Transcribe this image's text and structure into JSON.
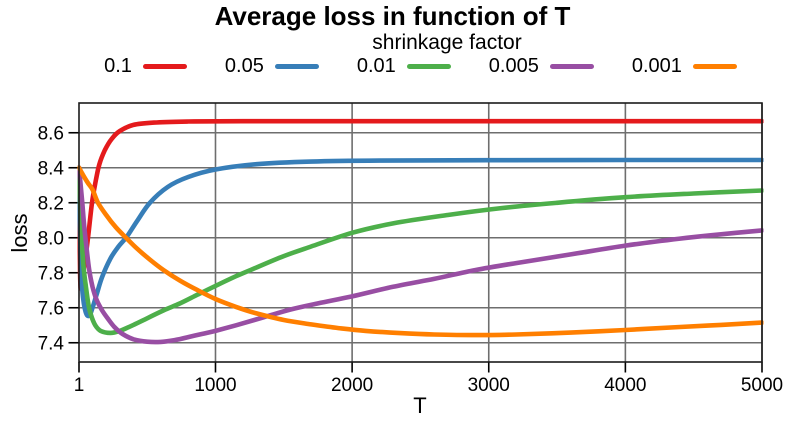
{
  "chart_data": {
    "type": "line",
    "title": "Average loss in function of T",
    "legend_title": "shrinkage factor",
    "legend_position": "top",
    "xlabel": "T",
    "ylabel": "loss",
    "grid": true,
    "colors": {
      "grid": "#6e6e6e",
      "box": "#1a1a1a",
      "axis": "#000000",
      "background": "#ffffff",
      "text": "#000000"
    },
    "x_axis": {
      "min": 1,
      "max": 5000,
      "ticks": [
        1,
        1000,
        2000,
        3000,
        4000,
        5000
      ],
      "tick_labels": [
        "1",
        "1000",
        "2000",
        "3000",
        "4000",
        "5000"
      ]
    },
    "y_axis": {
      "min": 7.29,
      "max": 8.77,
      "ticks": [
        7.4,
        7.6,
        7.8,
        8.0,
        8.2,
        8.4,
        8.6
      ],
      "tick_labels": [
        "7.4",
        "7.6",
        "7.8",
        "8.0",
        "8.2",
        "8.4",
        "8.6"
      ]
    },
    "series": [
      {
        "label": "0.1",
        "color": "#e41a1c",
        "points": [
          [
            1,
            8.4
          ],
          [
            4,
            8.1
          ],
          [
            8,
            7.84
          ],
          [
            12,
            7.72
          ],
          [
            18,
            7.725
          ],
          [
            28,
            7.775
          ],
          [
            45,
            7.87
          ],
          [
            67,
            8.0
          ],
          [
            96,
            8.2
          ],
          [
            125,
            8.33
          ],
          [
            150,
            8.42
          ],
          [
            190,
            8.5
          ],
          [
            240,
            8.565
          ],
          [
            300,
            8.61
          ],
          [
            400,
            8.645
          ],
          [
            550,
            8.658
          ],
          [
            800,
            8.664
          ],
          [
            1200,
            8.666
          ],
          [
            2000,
            8.666
          ],
          [
            3000,
            8.666
          ],
          [
            4000,
            8.666
          ],
          [
            5000,
            8.666
          ]
        ]
      },
      {
        "label": "0.05",
        "color": "#377eb8",
        "points": [
          [
            1,
            8.4
          ],
          [
            6,
            8.15
          ],
          [
            12,
            7.92
          ],
          [
            20,
            7.76
          ],
          [
            30,
            7.66
          ],
          [
            45,
            7.59
          ],
          [
            60,
            7.557
          ],
          [
            80,
            7.558
          ],
          [
            100,
            7.6
          ],
          [
            130,
            7.675
          ],
          [
            170,
            7.775
          ],
          [
            230,
            7.88
          ],
          [
            290,
            7.95
          ],
          [
            350,
            8.005
          ],
          [
            430,
            8.1
          ],
          [
            520,
            8.2
          ],
          [
            650,
            8.29
          ],
          [
            800,
            8.347
          ],
          [
            1000,
            8.39
          ],
          [
            1300,
            8.42
          ],
          [
            1700,
            8.435
          ],
          [
            2200,
            8.441
          ],
          [
            3000,
            8.443
          ],
          [
            4000,
            8.444
          ],
          [
            5000,
            8.444
          ]
        ]
      },
      {
        "label": "0.01",
        "color": "#4daf4a",
        "points": [
          [
            1,
            8.4
          ],
          [
            8,
            8.22
          ],
          [
            20,
            8.0
          ],
          [
            35,
            7.83
          ],
          [
            50,
            7.73
          ],
          [
            70,
            7.62
          ],
          [
            90,
            7.555
          ],
          [
            120,
            7.5
          ],
          [
            160,
            7.468
          ],
          [
            230,
            7.456
          ],
          [
            300,
            7.468
          ],
          [
            400,
            7.502
          ],
          [
            500,
            7.54
          ],
          [
            620,
            7.585
          ],
          [
            740,
            7.625
          ],
          [
            870,
            7.675
          ],
          [
            1000,
            7.725
          ],
          [
            1150,
            7.78
          ],
          [
            1300,
            7.83
          ],
          [
            1500,
            7.895
          ],
          [
            1700,
            7.95
          ],
          [
            2000,
            8.028
          ],
          [
            2300,
            8.082
          ],
          [
            2700,
            8.13
          ],
          [
            3100,
            8.17
          ],
          [
            3500,
            8.2
          ],
          [
            4000,
            8.232
          ],
          [
            4500,
            8.253
          ],
          [
            5000,
            8.27
          ]
        ]
      },
      {
        "label": "0.005",
        "color": "#984ea3",
        "points": [
          [
            1,
            8.4
          ],
          [
            12,
            8.31
          ],
          [
            25,
            8.2
          ],
          [
            40,
            8.06
          ],
          [
            55,
            7.95
          ],
          [
            75,
            7.82
          ],
          [
            100,
            7.72
          ],
          [
            130,
            7.645
          ],
          [
            170,
            7.585
          ],
          [
            210,
            7.54
          ],
          [
            260,
            7.49
          ],
          [
            320,
            7.45
          ],
          [
            400,
            7.42
          ],
          [
            500,
            7.406
          ],
          [
            600,
            7.405
          ],
          [
            700,
            7.415
          ],
          [
            800,
            7.432
          ],
          [
            900,
            7.45
          ],
          [
            1000,
            7.468
          ],
          [
            1150,
            7.5
          ],
          [
            1350,
            7.545
          ],
          [
            1550,
            7.59
          ],
          [
            1750,
            7.625
          ],
          [
            2000,
            7.665
          ],
          [
            2300,
            7.72
          ],
          [
            2600,
            7.765
          ],
          [
            2900,
            7.815
          ],
          [
            3200,
            7.855
          ],
          [
            3600,
            7.905
          ],
          [
            4000,
            7.955
          ],
          [
            4400,
            7.995
          ],
          [
            4700,
            8.02
          ],
          [
            5000,
            8.042
          ]
        ]
      },
      {
        "label": "0.001",
        "color": "#ff7f00",
        "points": [
          [
            1,
            8.4
          ],
          [
            60,
            8.32
          ],
          [
            100,
            8.275
          ],
          [
            140,
            8.2
          ],
          [
            200,
            8.13
          ],
          [
            270,
            8.06
          ],
          [
            345,
            8.0
          ],
          [
            430,
            7.935
          ],
          [
            520,
            7.875
          ],
          [
            620,
            7.815
          ],
          [
            740,
            7.755
          ],
          [
            870,
            7.7
          ],
          [
            1000,
            7.65
          ],
          [
            1150,
            7.605
          ],
          [
            1300,
            7.568
          ],
          [
            1500,
            7.53
          ],
          [
            1700,
            7.505
          ],
          [
            1900,
            7.484
          ],
          [
            2100,
            7.468
          ],
          [
            2350,
            7.455
          ],
          [
            2600,
            7.447
          ],
          [
            2900,
            7.444
          ],
          [
            3200,
            7.447
          ],
          [
            3600,
            7.458
          ],
          [
            4000,
            7.473
          ],
          [
            4400,
            7.49
          ],
          [
            4700,
            7.502
          ],
          [
            5000,
            7.515
          ]
        ]
      }
    ]
  }
}
